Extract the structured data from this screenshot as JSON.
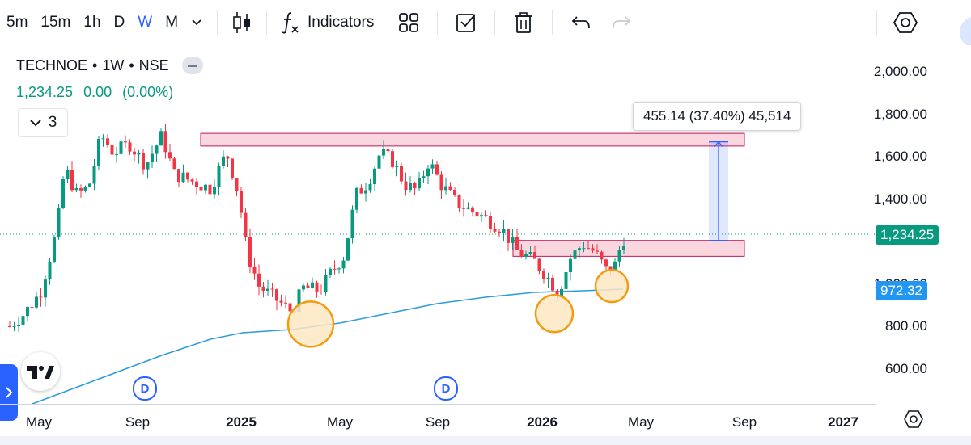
{
  "toolbar": {
    "timeframes": [
      "5m",
      "15m",
      "1h",
      "D",
      "W",
      "M"
    ],
    "active_timeframe": "W",
    "indicators_label": "Indicators"
  },
  "legend": {
    "symbol": "TECHNOE",
    "interval": "1W",
    "exchange": "NSE",
    "sep": "•",
    "price": "1,234.25",
    "change": "0.00",
    "change_pct": "(0.00%)",
    "indicators_count": "3"
  },
  "measure": {
    "text": "455.14 (37.40%) 45,514"
  },
  "price_axis": {
    "labels": [
      "2,000.00",
      "1,800.00",
      "1,600.00",
      "1,400.00",
      "800.00",
      "600.00"
    ],
    "current_price_tag": "1,234.25",
    "ma_tag": "972.32",
    "partial_label": "1,000.00"
  },
  "time_axis": {
    "labels": [
      "May",
      "Sep",
      "2025",
      "May",
      "Sep",
      "2026",
      "May",
      "Sep",
      "2027"
    ],
    "bold": [
      "2025",
      "2026",
      "2027"
    ]
  },
  "dividend_marker": "D",
  "colors": {
    "up": "#089981",
    "down": "#f23645",
    "accent": "#2962ff",
    "ma_line": "#2d9cdb",
    "zone_fill": "#f8c8d4",
    "zone_border": "#c2185b",
    "circle_fill": "#fde7c3",
    "circle_border": "#f39c12",
    "ma_tag_bg": "#2196f3",
    "price_tag_bg": "#089981"
  },
  "chart_data": {
    "type": "candlestick",
    "price_range": [
      460,
      2100
    ],
    "zones": [
      {
        "low": 1650,
        "high": 1710
      },
      {
        "low": 1130,
        "high": 1205
      }
    ],
    "measure_range": {
      "from": 1205,
      "to": 1670
    },
    "highlight_circles": [
      {
        "price": 810
      },
      {
        "price": 860
      },
      {
        "price": 990
      }
    ]
  }
}
